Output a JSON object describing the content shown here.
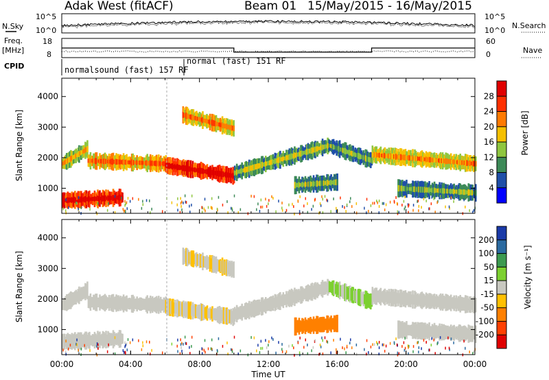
{
  "header": {
    "station": "Adak West (fitACF)",
    "beam": "Beam 01",
    "dates": "15/May/2015 - 16/May/2015"
  },
  "left_labels": {
    "nsky": "N.Sky",
    "freq": "Freq.",
    "freq_unit": "[MHz]",
    "cpid": "CPID"
  },
  "right_labels": {
    "nsearch": "N.Search",
    "nave": "Nave"
  },
  "noise_panel": {
    "tick_top": "10^5",
    "tick_bottom": "10^0",
    "right_tick_top": "10^5",
    "right_tick_bottom": "10^0"
  },
  "freq_panel": {
    "left_ticks": [
      "18",
      "8"
    ],
    "right_ticks": [
      "60",
      "0"
    ]
  },
  "cpid_panel": {
    "label_1": "normalsound (fast) 157 RF",
    "label_2": "normal (fast) 151 RF"
  },
  "power_panel": {
    "ylabel": "Slant Range [km]",
    "cbar_label": "Power [dB]",
    "cbar_ticks": [
      "28",
      "24",
      "20",
      "16",
      "12",
      "8",
      "4"
    ],
    "cbar_colors": [
      "#e00000",
      "#ff3000",
      "#ff7a00",
      "#f5c000",
      "#8fc63f",
      "#3d8a58",
      "#1f4fa8",
      "#0000ff"
    ]
  },
  "velocity_panel": {
    "ylabel": "Slant Range [km]",
    "cbar_label": "Velocity [m s⁻¹]",
    "cbar_ticks": [
      "200",
      "100",
      "50",
      "15",
      "-15",
      "-50",
      "-100",
      "-200"
    ],
    "cbar_colors": [
      "#1a3aa8",
      "#2b6aa0",
      "#3c9a50",
      "#7cd030",
      "#c8c8c0",
      "#ffc000",
      "#ff8000",
      "#ff4000",
      "#e00000"
    ]
  },
  "x_axis": {
    "label": "Time UT",
    "ticks": [
      "00:00",
      "04:00",
      "08:00",
      "12:00",
      "16:00",
      "20:00",
      "00:00"
    ]
  },
  "chart_data": {
    "type": "heatmap",
    "title": "Adak West (fitACF) Beam 01 15/May/2015 - 16/May/2015",
    "xlabel": "Time UT",
    "ylabel": "Slant Range [km]",
    "xlim_hours": [
      0,
      24
    ],
    "ylim_km": [
      180,
      4600
    ],
    "y_ticks_km": [
      1000,
      2000,
      3000,
      4000
    ],
    "frequency_segments_mhz": [
      {
        "start_hour": 0,
        "end_hour": 10,
        "freq": 13
      },
      {
        "start_hour": 10,
        "end_hour": 18,
        "freq": 10.5
      },
      {
        "start_hour": 18,
        "end_hour": 24,
        "freq": 13
      }
    ],
    "scatter_features": [
      {
        "name": "band-a",
        "t_start": 0.0,
        "t_end": 1.5,
        "range_start": 1800,
        "range_end": 2300,
        "power_db": 14,
        "velocity": 0
      },
      {
        "name": "band-b",
        "t_start": 1.5,
        "t_end": 6.0,
        "range_start": 1900,
        "range_end": 1800,
        "power_db": 18,
        "velocity": 0
      },
      {
        "name": "band-c",
        "t_start": 6.0,
        "t_end": 10.0,
        "range_start": 1750,
        "range_end": 1400,
        "power_db": 26,
        "velocity": -10
      },
      {
        "name": "band-d",
        "t_start": 10.0,
        "t_end": 15.5,
        "range_start": 1500,
        "range_end": 2400,
        "power_db": 10,
        "velocity": 0
      },
      {
        "name": "band-e",
        "t_start": 15.5,
        "t_end": 18.0,
        "range_start": 2400,
        "range_end": 1900,
        "power_db": 8,
        "velocity": 20
      },
      {
        "name": "band-f",
        "t_start": 18.0,
        "t_end": 24.0,
        "range_start": 2100,
        "range_end": 1800,
        "power_db": 16,
        "velocity": 0
      },
      {
        "name": "near-range",
        "t_start": 0.0,
        "t_end": 3.5,
        "range_start": 600,
        "range_end": 700,
        "power_db": 26,
        "velocity": 0
      },
      {
        "name": "upper-patch",
        "t_start": 7.0,
        "t_end": 10.0,
        "range_start": 3400,
        "range_end": 2950,
        "power_db": 18,
        "velocity": -10
      },
      {
        "name": "mid-patch",
        "t_start": 13.5,
        "t_end": 16.0,
        "range_start": 1100,
        "range_end": 1200,
        "power_db": 8,
        "velocity": -60
      },
      {
        "name": "evening-low",
        "t_start": 19.5,
        "t_end": 24.0,
        "range_start": 1000,
        "range_end": 850,
        "power_db": 8,
        "velocity": 0
      }
    ]
  }
}
